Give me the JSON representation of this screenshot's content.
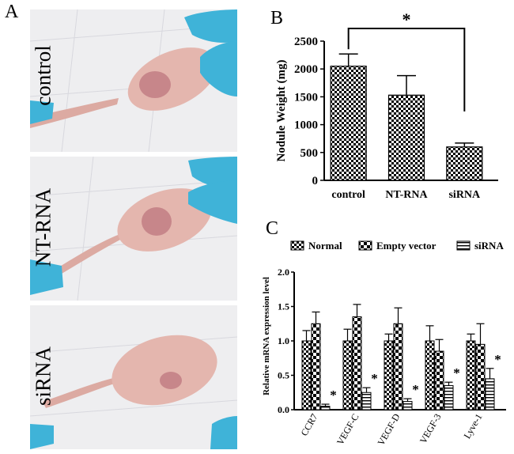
{
  "panels": {
    "a_letter": "A",
    "b_letter": "B",
    "c_letter": "C"
  },
  "photos": [
    {
      "label": "control"
    },
    {
      "label": "NT-RNA"
    },
    {
      "label": "siRNA"
    }
  ],
  "colors": {
    "glove": "#3fb3d8",
    "skin": "#e4b6ae",
    "tumor": "#c7868a",
    "paper": "#efeff1"
  },
  "chart_data": [
    {
      "type": "bar",
      "title": "",
      "categories": [
        "control",
        "NT-RNA",
        "siRNA"
      ],
      "values": [
        2050,
        1530,
        600
      ],
      "errors": [
        220,
        350,
        70
      ],
      "ylabel": "Nodule Weight (mg)",
      "xlabel": "",
      "ylim": [
        0,
        2500
      ],
      "yticks": [
        "0",
        "500",
        "1000",
        "1500",
        "2000",
        "2500"
      ],
      "significance": {
        "from": "control",
        "to": "siRNA",
        "label": "*"
      },
      "pattern": "checker",
      "grid": false
    },
    {
      "type": "bar",
      "title": "",
      "categories": [
        "CCR7",
        "VEGF-C",
        "VEGF-D",
        "VEGF-3",
        "Lyve-1"
      ],
      "series": [
        {
          "name": "Normal",
          "values": [
            1.0,
            1.0,
            1.0,
            1.0,
            1.0
          ],
          "errors": [
            0.15,
            0.17,
            0.1,
            0.22,
            0.1
          ],
          "pattern": "checker"
        },
        {
          "name": "Empty vector",
          "values": [
            1.25,
            1.35,
            1.25,
            0.85,
            0.95
          ],
          "errors": [
            0.17,
            0.18,
            0.23,
            0.17,
            0.3
          ],
          "pattern": "bigchecker"
        },
        {
          "name": "siRNA",
          "values": [
            0.05,
            0.25,
            0.12,
            0.35,
            0.45
          ],
          "errors": [
            0.03,
            0.07,
            0.04,
            0.05,
            0.15
          ],
          "pattern": "hlines",
          "annotation": "*"
        }
      ],
      "ylabel": "Relative mRNA expression level",
      "xlabel": "",
      "ylim": [
        0,
        2.0
      ],
      "yticks": [
        "0.0",
        "0.5",
        "1.0",
        "1.5",
        "2.0"
      ],
      "legend": "top",
      "grid": false
    }
  ]
}
